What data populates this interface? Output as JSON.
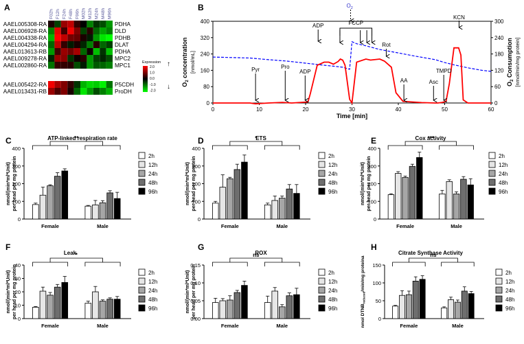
{
  "panelA": {
    "letter": "A",
    "col_labels": [
      "F02h",
      "F12h",
      "F24h",
      "F48h",
      "F96h",
      "M02h",
      "M12h",
      "M24h",
      "M48h",
      "M96h"
    ],
    "rows": [
      {
        "id": "AAEL005308-RA",
        "gene": "PDHA",
        "cells": [
          0.2,
          -0.5,
          1.2,
          1.5,
          0.4,
          0.0,
          -1.0,
          -0.4,
          -0.6,
          -1.2
        ]
      },
      {
        "id": "AAEL006928-RA",
        "gene": "DLD",
        "cells": [
          -1.0,
          1.8,
          0.5,
          1.9,
          1.0,
          -0.5,
          0.3,
          -0.8,
          -1.3,
          -1.0
        ]
      },
      {
        "id": "AAEL004338-RA",
        "gene": "PDHB",
        "cells": [
          -1.4,
          2.0,
          1.5,
          0.9,
          0.8,
          0.2,
          -0.2,
          -1.2,
          -1.8,
          -2.0
        ]
      },
      {
        "id": "AAEL004294-RA",
        "gene": "DLAT",
        "cells": [
          -0.8,
          1.5,
          0.4,
          -0.2,
          0.2,
          -0.3,
          -1.0,
          0.3,
          -0.8,
          -0.5
        ]
      },
      {
        "id": "AAEL013613-RB",
        "gene": "PDHA",
        "cells": [
          -1.2,
          0.5,
          1.2,
          0.9,
          1.3,
          -0.8,
          0.1,
          -1.5,
          -0.4,
          -1.5
        ]
      },
      {
        "id": "AAEL009278-RA",
        "gene": "MPC2",
        "cells": [
          -0.3,
          1.2,
          1.1,
          -0.4,
          0.1,
          0.3,
          -1.2,
          -0.5,
          -0.3,
          -0.6
        ]
      },
      {
        "id": "AAEL002860-RA",
        "gene": "MPC1",
        "cells": [
          -0.9,
          0.4,
          0.4,
          0.3,
          -0.6,
          -0.2,
          -1.2,
          -0.7,
          -0.8,
          -1.0
        ]
      },
      {
        "id": "AAEL005422-RA",
        "gene": "P5CDH",
        "cells": [
          1.9,
          1.3,
          1.0,
          0.4,
          -0.4,
          -1.4,
          -1.7,
          -1.6,
          -1.9,
          -0.9
        ]
      },
      {
        "id": "AAEL013431-RB",
        "gene": "ProDH",
        "cells": [
          1.2,
          0.6,
          1.0,
          0.2,
          -0.8,
          -1.8,
          -1.2,
          -0.6,
          -1.0,
          -1.4
        ]
      }
    ],
    "legend_title": "Expression",
    "legend_ticks": [
      "2.0",
      "1.0",
      "0.0",
      "-1.0",
      "-2.0"
    ],
    "up_arrow": "↑",
    "down_arrow": "↓",
    "high_color": "#ff0000",
    "low_color": "#00ff00"
  },
  "panelB": {
    "letter": "B",
    "chart_data": {
      "type": "line",
      "xlabel": "Time [min]",
      "ylabel_left_1": "O",
      "ylabel_left_sub": "2",
      "ylabel_left_2": " concentration",
      "ylabel_left_unit": "[nmol/mL]",
      "ylabel_right_1": "O",
      "ylabel_right_sub": "2",
      "ylabel_right_2": " Consumption",
      "ylabel_right_unit": "[nmol/min/mg protein]",
      "xlim": [
        0,
        60
      ],
      "ylim_left": [
        0,
        400
      ],
      "ylim_right": [
        0,
        300
      ],
      "xticks": [
        "0",
        "10",
        "20",
        "30",
        "40",
        "50",
        "60"
      ],
      "yticks_left": [
        "0",
        "80",
        "160",
        "240",
        "320",
        "400"
      ],
      "yticks_right": [
        "0",
        "60",
        "120",
        "180",
        "240",
        "300"
      ],
      "series": [
        {
          "color": "#0000ff",
          "x": [
            0,
            8,
            12,
            16,
            20,
            24,
            26,
            28,
            29.5,
            30,
            31,
            33,
            36,
            40,
            44,
            48,
            50,
            52,
            55,
            58,
            60
          ],
          "y": [
            225,
            220,
            212,
            205,
            195,
            185,
            180,
            175,
            165,
            300,
            290,
            280,
            262,
            245,
            228,
            212,
            198,
            187,
            172,
            160,
            155
          ]
        },
        {
          "color": "#ff0000",
          "x": [
            0,
            8,
            9.2,
            10.5,
            12,
            15,
            17,
            19,
            20.5,
            21,
            22.5,
            24,
            25,
            26,
            27,
            27.5,
            28,
            28.5,
            29.5,
            30,
            31,
            33,
            34,
            36,
            37,
            38.5,
            39.5,
            41,
            45,
            48,
            48.5,
            49.5,
            50.3,
            51,
            52,
            53,
            53.5,
            54,
            55,
            60
          ],
          "y": [
            0,
            0,
            -4,
            -2,
            0,
            3,
            0,
            3,
            5,
            45,
            185,
            200,
            200,
            190,
            203,
            215,
            210,
            185,
            18,
            0,
            200,
            215,
            210,
            215,
            205,
            175,
            50,
            8,
            2,
            0,
            0,
            3,
            8,
            95,
            270,
            270,
            235,
            15,
            0,
            0
          ]
        }
      ],
      "o2_label_1": "O",
      "o2_label_sub": "2",
      "fccp_label": "FCCP",
      "annotations": [
        {
          "text": "Pyr",
          "x": 9.2
        },
        {
          "text": "Pro",
          "x": 15.6
        },
        {
          "text": "ADP",
          "x": 19.9
        },
        {
          "text": "ADP",
          "x": 22.7
        },
        {
          "text": "Rot",
          "x": 37.4
        },
        {
          "text": "AA",
          "x": 41.2
        },
        {
          "text": "Asc",
          "x": 47.6
        },
        {
          "text": "TMPD",
          "x": 49.8
        },
        {
          "text": "KCN",
          "x": 53.1
        }
      ]
    }
  },
  "bar_legend": [
    "2h",
    "12h",
    "24h",
    "48h",
    "96h"
  ],
  "bar_colors": [
    "#ffffff",
    "#e6e6e6",
    "#a6a6a6",
    "#6e6e6e",
    "#000000"
  ],
  "bar_panels": [
    {
      "letter": "C",
      "title": "ATP-linked respiration rate",
      "ylabel_1": "nmol/(min*ml*Unit)",
      "ylabel_2": "per head per mg protein",
      "sig": "**",
      "chart_data": {
        "type": "bar",
        "categories": [
          "Female",
          "Male"
        ],
        "ylim": [
          0,
          400
        ],
        "yticks": [
          "0",
          "100",
          "200",
          "300",
          "400"
        ],
        "series": [
          {
            "name": "2h",
            "values": [
              82,
              73
            ],
            "err": [
              8,
              4
            ]
          },
          {
            "name": "12h",
            "values": [
              135,
              80
            ],
            "err": [
              45,
              25
            ]
          },
          {
            "name": "24h",
            "values": [
              188,
              92
            ],
            "err": [
              6,
              12
            ]
          },
          {
            "name": "48h",
            "values": [
              242,
              148
            ],
            "err": [
              20,
              12
            ]
          },
          {
            "name": "96h",
            "values": [
              272,
              116
            ],
            "err": [
              12,
              35
            ]
          }
        ]
      }
    },
    {
      "letter": "D",
      "title": "ETS",
      "ylabel_1": "nmol/(min*ml*Unit)",
      "ylabel_2": "per head per mg protein",
      "sig": "*",
      "chart_data": {
        "type": "bar",
        "categories": [
          "Female",
          "Male"
        ],
        "ylim": [
          0,
          400
        ],
        "yticks": [
          "0",
          "100",
          "200",
          "300",
          "400"
        ],
        "series": [
          {
            "name": "2h",
            "values": [
              90,
              80
            ],
            "err": [
              10,
              10
            ]
          },
          {
            "name": "12h",
            "values": [
              180,
              105
            ],
            "err": [
              70,
              25
            ]
          },
          {
            "name": "24h",
            "values": [
              228,
              118
            ],
            "err": [
              8,
              12
            ]
          },
          {
            "name": "48h",
            "values": [
              280,
              170
            ],
            "err": [
              30,
              25
            ]
          },
          {
            "name": "96h",
            "values": [
              322,
              145
            ],
            "err": [
              40,
              50
            ]
          }
        ]
      }
    },
    {
      "letter": "E",
      "title": "Cox activity",
      "ylabel_1": "nmol/(min*ml*Unit)",
      "ylabel_2": "per head per mg protein",
      "sig": "***",
      "chart_data": {
        "type": "bar",
        "categories": [
          "Female",
          "Male"
        ],
        "ylim": [
          0,
          400
        ],
        "yticks": [
          "0",
          "100",
          "200",
          "300",
          "400"
        ],
        "series": [
          {
            "name": "2h",
            "values": [
              138,
              142
            ],
            "err": [
              5,
              20
            ]
          },
          {
            "name": "12h",
            "values": [
              258,
              212
            ],
            "err": [
              10,
              10
            ]
          },
          {
            "name": "24h",
            "values": [
              235,
              142
            ],
            "err": [
              8,
              12
            ]
          },
          {
            "name": "48h",
            "values": [
              298,
              225
            ],
            "err": [
              12,
              15
            ]
          },
          {
            "name": "96h",
            "values": [
              348,
              193
            ],
            "err": [
              30,
              35
            ]
          }
        ]
      }
    },
    {
      "letter": "F",
      "title": "Leak",
      "ylabel_1": "nmol/(min*ml*Unit)",
      "ylabel_2": "per head per mg protein",
      "sig": "*",
      "chart_data": {
        "type": "bar",
        "categories": [
          "Female",
          "Male"
        ],
        "ylim": [
          0,
          40
        ],
        "yticks": [
          "0",
          "10",
          "20",
          "30",
          "40"
        ],
        "series": [
          {
            "name": "2h",
            "values": [
              8.5,
              11.5
            ],
            "err": [
              0.5,
              1.5
            ]
          },
          {
            "name": "12h",
            "values": [
              20.5,
              20
            ],
            "err": [
              3,
              4
            ]
          },
          {
            "name": "24h",
            "values": [
              17.5,
              13
            ],
            "err": [
              2,
              1
            ]
          },
          {
            "name": "48h",
            "values": [
              23.5,
              14.5
            ],
            "err": [
              2,
              1
            ]
          },
          {
            "name": "96h",
            "values": [
              27,
              14.5
            ],
            "err": [
              4.5,
              2
            ]
          }
        ]
      }
    },
    {
      "letter": "G",
      "title": "ROX",
      "ylabel_1": "nmol/(min*ml*Unit)",
      "ylabel_2": "per head per mg protein",
      "sig": "ns",
      "chart_data": {
        "type": "bar",
        "categories": [
          "Female",
          "Male"
        ],
        "ylim": [
          0,
          0.15
        ],
        "yticks": [
          "0.00",
          "0.05",
          "0.10",
          "0.15"
        ],
        "series": [
          {
            "name": "2h",
            "values": [
              0.045,
              0.045
            ],
            "err": [
              0.012,
              0.018
            ]
          },
          {
            "name": "12h",
            "values": [
              0.05,
              0.077
            ],
            "err": [
              0.006,
              0.01
            ]
          },
          {
            "name": "24h",
            "values": [
              0.052,
              0.033
            ],
            "err": [
              0.012,
              0.006
            ]
          },
          {
            "name": "48h",
            "values": [
              0.073,
              0.064
            ],
            "err": [
              0.006,
              0.008
            ]
          },
          {
            "name": "96h",
            "values": [
              0.093,
              0.067
            ],
            "err": [
              0.012,
              0.018
            ]
          }
        ]
      }
    },
    {
      "letter": "H",
      "title": "Citrate Synthase Activity",
      "ylabel_1": "nmol DTNB",
      "ylabel_sub": "reduced",
      "ylabel_2": "/min/mg proteina",
      "sig": "ns",
      "chart_data": {
        "type": "bar",
        "categories": [
          "Female",
          "Male"
        ],
        "ylim": [
          0,
          150
        ],
        "yticks": [
          "0",
          "50",
          "100",
          "150"
        ],
        "series": [
          {
            "name": "2h",
            "values": [
              35,
              30
            ],
            "err": [
              2,
              3
            ]
          },
          {
            "name": "12h",
            "values": [
              65,
              53
            ],
            "err": [
              13,
              7
            ]
          },
          {
            "name": "24h",
            "values": [
              67,
              46
            ],
            "err": [
              10,
              6
            ]
          },
          {
            "name": "48h",
            "values": [
              105,
              77
            ],
            "err": [
              12,
              12
            ]
          },
          {
            "name": "96h",
            "values": [
              110,
              70
            ],
            "err": [
              10,
              6
            ]
          }
        ]
      }
    }
  ]
}
